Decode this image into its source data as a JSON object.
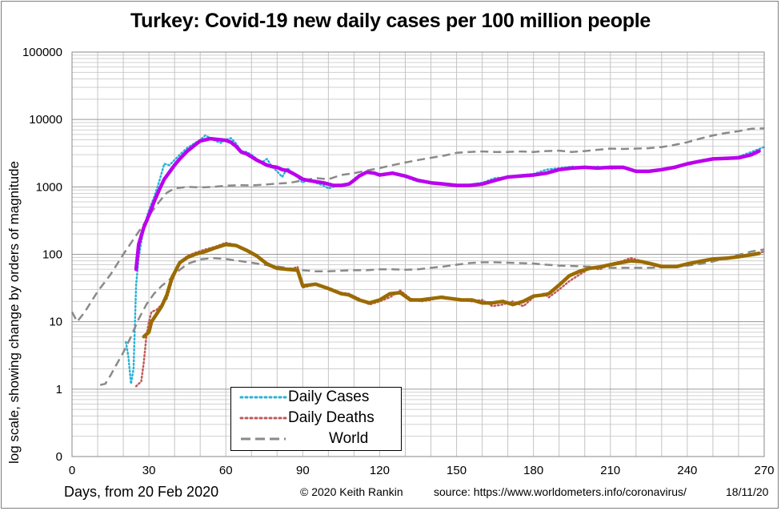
{
  "chart_data": {
    "type": "line",
    "title": "Turkey: Covid-19 new daily cases per 100 million people",
    "xlabel": "Days, from 20 Feb 2020",
    "ylabel": "log scale, showing change by orders of magnitude",
    "y_scale": "log",
    "xlim": [
      0,
      270
    ],
    "ylim": [
      0.1,
      100000
    ],
    "x_ticks": [
      0,
      30,
      60,
      90,
      120,
      150,
      180,
      210,
      240,
      270
    ],
    "y_ticks": [
      {
        "value": 0.1,
        "label": "0"
      },
      {
        "value": 1,
        "label": "1"
      },
      {
        "value": 10,
        "label": "10"
      },
      {
        "value": 100,
        "label": "100"
      },
      {
        "value": 1000,
        "label": "1000"
      },
      {
        "value": 10000,
        "label": "10000"
      },
      {
        "value": 100000,
        "label": "100000"
      }
    ],
    "grid": true,
    "legend_position": "bottom-center",
    "series": [
      {
        "name": "Daily Cases",
        "style": "dotted",
        "color": "#27b3d8",
        "x": [
          21,
          22,
          23,
          24,
          25,
          26,
          28,
          30,
          32,
          34,
          36,
          38,
          40,
          42,
          45,
          48,
          50,
          52,
          54,
          56,
          58,
          60,
          62,
          64,
          66,
          68,
          70,
          72,
          74,
          76,
          78,
          80,
          82,
          84,
          86,
          88,
          90,
          92,
          95,
          98,
          100,
          102,
          105,
          108,
          110,
          112,
          115,
          118,
          120,
          125,
          130,
          135,
          140,
          145,
          150,
          155,
          160,
          165,
          170,
          175,
          180,
          185,
          190,
          195,
          200,
          205,
          210,
          215,
          220,
          225,
          230,
          235,
          240,
          245,
          250,
          255,
          260,
          265,
          270
        ],
        "y": [
          5,
          3,
          1.2,
          2,
          35,
          90,
          250,
          450,
          700,
          1200,
          2200,
          2100,
          2500,
          3000,
          3800,
          4500,
          5000,
          5800,
          5300,
          4800,
          4500,
          5000,
          5300,
          4400,
          3400,
          3300,
          3000,
          2600,
          2300,
          2600,
          2000,
          1700,
          1400,
          1900,
          1600,
          1400,
          1150,
          1300,
          1150,
          1050,
          950,
          1000,
          1050,
          1100,
          1300,
          1500,
          1700,
          1600,
          1500,
          1650,
          1400,
          1200,
          1150,
          1100,
          1050,
          1080,
          1150,
          1350,
          1400,
          1500,
          1550,
          1800,
          1900,
          2000,
          1900,
          2000,
          1850,
          1900,
          1750,
          1700,
          1800,
          1900,
          2200,
          2400,
          2600,
          2700,
          2800,
          3300,
          3900
        ]
      },
      {
        "name": "Daily Deaths",
        "style": "dotted",
        "color": "#c05a5a",
        "x": [
          25,
          26,
          27,
          28,
          29,
          30,
          31,
          33,
          35,
          37,
          39,
          42,
          45,
          48,
          52,
          56,
          60,
          64,
          68,
          72,
          76,
          80,
          84,
          88,
          90,
          95,
          100,
          105,
          108,
          112,
          116,
          120,
          124,
          128,
          132,
          136,
          140,
          144,
          148,
          152,
          156,
          160,
          164,
          168,
          172,
          176,
          180,
          184,
          186,
          190,
          194,
          198,
          202,
          206,
          210,
          214,
          218,
          222,
          226,
          230,
          236,
          240,
          246,
          250,
          256,
          260,
          266,
          270
        ],
        "y": [
          1.1,
          1.2,
          1.3,
          2.5,
          6,
          10,
          14,
          15,
          18,
          22,
          40,
          75,
          95,
          105,
          118,
          130,
          148,
          138,
          118,
          98,
          75,
          62,
          58,
          65,
          32,
          36,
          32,
          27,
          26,
          22,
          18,
          20,
          23,
          29,
          22,
          20,
          21,
          24,
          22,
          21,
          20,
          21,
          17,
          18,
          20,
          17,
          23,
          26,
          23,
          30,
          40,
          50,
          62,
          60,
          72,
          78,
          88,
          80,
          74,
          68,
          66,
          72,
          80,
          86,
          90,
          95,
          100,
          110
        ]
      },
      {
        "name": "World",
        "style": "dashed",
        "color": "#8a8a8a",
        "x": [
          0,
          2,
          5,
          10,
          15,
          20,
          25,
          28,
          31,
          34,
          37,
          40,
          45,
          50,
          55,
          60,
          65,
          70,
          75,
          80,
          85,
          90,
          95,
          100,
          105,
          110,
          115,
          120,
          125,
          130,
          135,
          140,
          145,
          150,
          155,
          160,
          165,
          170,
          175,
          180,
          185,
          190,
          195,
          200,
          205,
          210,
          215,
          220,
          225,
          230,
          235,
          240,
          245,
          250,
          255,
          260,
          265,
          270
        ],
        "y": [
          14,
          10,
          14,
          28,
          50,
          100,
          190,
          280,
          420,
          600,
          820,
          950,
          1000,
          980,
          1000,
          1040,
          1060,
          1050,
          1080,
          1120,
          1150,
          1250,
          1350,
          1300,
          1500,
          1600,
          1750,
          1900,
          2100,
          2300,
          2500,
          2700,
          2900,
          3200,
          3300,
          3350,
          3300,
          3300,
          3350,
          3300,
          3400,
          3450,
          3300,
          3400,
          3550,
          3700,
          3650,
          3700,
          3750,
          3900,
          4200,
          4600,
          5200,
          5800,
          6300,
          6700,
          7300,
          7400
        ]
      },
      {
        "name": "World",
        "style": "dashed",
        "color": "#8a8a8a",
        "x": [
          11,
          13,
          15,
          17,
          20,
          23,
          26,
          29,
          32,
          35,
          38,
          41,
          45,
          50,
          55,
          60,
          65,
          70,
          75,
          80,
          85,
          90,
          95,
          100,
          105,
          110,
          115,
          120,
          125,
          130,
          135,
          140,
          145,
          150,
          155,
          160,
          165,
          170,
          175,
          180,
          185,
          190,
          195,
          200,
          205,
          210,
          215,
          220,
          225,
          230,
          235,
          240,
          245,
          250,
          255,
          260,
          265,
          270
        ],
        "y": [
          1.15,
          1.2,
          1.6,
          2.2,
          3.5,
          6,
          11,
          18,
          26,
          34,
          42,
          55,
          72,
          84,
          88,
          85,
          80,
          75,
          70,
          66,
          62,
          58,
          56,
          56,
          57,
          58,
          58,
          60,
          60,
          59,
          60,
          63,
          66,
          70,
          74,
          76,
          76,
          75,
          74,
          73,
          70,
          68,
          67,
          66,
          65,
          63,
          63,
          63,
          63,
          64,
          66,
          68,
          72,
          78,
          88,
          98,
          110,
          118
        ]
      },
      {
        "name": "Daily Cases",
        "style": "solid",
        "color": "#bb00ee",
        "legend": false,
        "x": [
          25,
          26,
          28,
          30,
          32,
          34,
          36,
          38,
          40,
          42,
          45,
          48,
          50,
          52,
          54,
          56,
          58,
          60,
          62,
          64,
          66,
          68,
          70,
          72,
          74,
          76,
          78,
          80,
          82,
          84,
          86,
          88,
          90,
          92,
          95,
          98,
          100,
          102,
          105,
          108,
          110,
          112,
          115,
          118,
          120,
          125,
          130,
          135,
          140,
          145,
          150,
          155,
          160,
          165,
          170,
          175,
          180,
          185,
          190,
          195,
          200,
          205,
          210,
          215,
          220,
          225,
          230,
          235,
          240,
          245,
          250,
          255,
          260,
          265,
          268
        ],
        "y": [
          60,
          140,
          250,
          380,
          600,
          900,
          1300,
          1650,
          2100,
          2600,
          3400,
          4200,
          4800,
          5000,
          5200,
          5100,
          5000,
          4900,
          4600,
          4000,
          3300,
          3100,
          2800,
          2500,
          2300,
          2100,
          2000,
          1950,
          1800,
          1750,
          1600,
          1450,
          1300,
          1250,
          1200,
          1150,
          1100,
          1050,
          1050,
          1100,
          1250,
          1450,
          1650,
          1600,
          1500,
          1600,
          1450,
          1250,
          1150,
          1100,
          1050,
          1050,
          1100,
          1250,
          1400,
          1450,
          1500,
          1600,
          1800,
          1900,
          1950,
          1900,
          1950,
          1950,
          1700,
          1700,
          1800,
          1950,
          2200,
          2400,
          2600,
          2650,
          2700,
          3000,
          3400
        ]
      },
      {
        "name": "Daily Deaths",
        "style": "solid",
        "color": "#9a6b00",
        "legend": false,
        "x": [
          28,
          30,
          31,
          33,
          35,
          37,
          39,
          42,
          45,
          48,
          52,
          56,
          60,
          64,
          68,
          72,
          76,
          80,
          84,
          88,
          90,
          95,
          100,
          105,
          108,
          112,
          116,
          120,
          124,
          128,
          132,
          136,
          140,
          144,
          148,
          152,
          156,
          160,
          164,
          168,
          172,
          176,
          180,
          184,
          186,
          190,
          194,
          198,
          202,
          206,
          210,
          214,
          218,
          222,
          226,
          230,
          236,
          240,
          246,
          250,
          256,
          260,
          266,
          268
        ],
        "y": [
          6,
          7,
          10,
          13,
          17,
          25,
          45,
          75,
          90,
          100,
          110,
          125,
          140,
          135,
          115,
          95,
          72,
          62,
          60,
          58,
          34,
          36,
          31,
          26,
          25,
          21,
          19,
          21,
          26,
          27,
          21,
          21,
          22,
          23,
          22,
          21,
          21,
          19,
          19,
          20,
          18,
          20,
          24,
          25,
          26,
          35,
          48,
          56,
          62,
          65,
          70,
          75,
          80,
          78,
          72,
          66,
          66,
          72,
          80,
          85,
          88,
          92,
          100,
          103
        ]
      }
    ]
  },
  "footer": {
    "copyright": "© 2020  Keith  Rankin",
    "source": "source:  https://www.worldometers.info/coronavirus/",
    "date": "18/11/20"
  },
  "legend": {
    "cases": "Daily Cases",
    "deaths": "Daily Deaths",
    "world": "World"
  }
}
